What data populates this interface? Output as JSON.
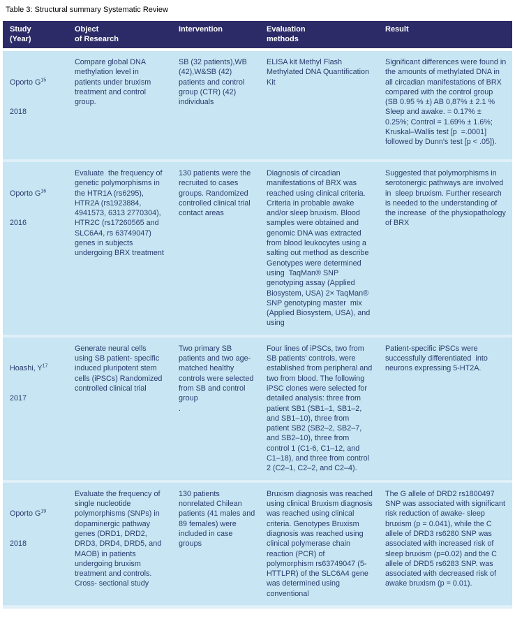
{
  "caption": "Table 3: Structural summary Systematic Review",
  "appearance": {
    "header_bg": "#2c2b67",
    "header_text": "#ffffff",
    "row_bg": "#c7e5f2",
    "row_separator": "#e0eff8",
    "body_text": "#2a3b6e"
  },
  "table": {
    "headers": {
      "study": "Study\n(Year)",
      "object": "Object\nof Research",
      "intervention": "Intervention",
      "evaluation": "Evaluation\nmethods",
      "result": "Result"
    },
    "rows": [
      {
        "study": {
          "name": "Oporto G",
          "ref": "15",
          "year": "2018"
        },
        "object": "Compare global DNA methylation level in patients under bruxism treatment and control group.",
        "intervention": "SB (32 patients),WB (42),W&SB (42) patients and control group (CTR) (42) individuals",
        "evaluation": "ELISA kit Methyl Flash Methylated DNA Quantification Kit",
        "result": "Significant differences were found in the amounts of methylated DNA in all circadian manifestations of BRX compared with the control group (SB 0.95 % ±) AB 0,87% ± 2.1 % Sleep and awake. = 0.17% ± 0.25%; Control = 1.69% ± 1.6%; Kruskal–Wallis test [p  =.0001] followed by Dunn's test [p < .05])."
      },
      {
        "study": {
          "name": "Oporto G",
          "ref": "16",
          "year": "2016"
        },
        "object": "Evaluate  the frequency of genetic polymorphisms in the HTR1A (rs6295), HTR2A (rs1923884, 4941573, 6313 2770304), HTR2C (rs17260565 and SLC6A4, rs 63749047) genes in subjects undergoing BRX treatment",
        "intervention": "130 patients were the recruited to cases groups. Randomized controlled clinical trial contact areas",
        "evaluation": "Diagnosis of circadian manifestations of BRX was reached using clinical criteria. Criteria in probable awake and/or sleep bruxism. Blood samples were obtained and genomic DNA was extracted from blood leukocytes using a salting out method as describe Genotypes were determined using  TaqMan® SNP genotyping assay (Applied Biosystem, USA) 2× TaqMan® SNP genotyping master  mix  (Applied Biosystem, USA), and using",
        "result": "Suggested that polymorphisms in serotonergic pathways are involved in  sleep bruxism. Further research is needed to the understanding of the increase  of the physiopathology of BRX"
      },
      {
        "study": {
          "name": "Hoashi, Y",
          "ref": "17",
          "year": "2017"
        },
        "object": "Generate neural cells using SB patient- specific induced pluripotent stem cells (iPSCs) Randomized controlled clinical trial",
        "intervention": "Two primary SB patients and two age- matched healthy controls were selected from SB and control group\n.",
        "evaluation": "Four lines of iPSCs, two from SB patients' controls, were established from peripheral and two from blood. The following iPSC clones were selected for detailed analysis: three from patient SB1 (SB1–1, SB1–2, and SB1–10), three from patient SB2 (SB2–2, SB2–7, and SB2–10), three from control 1 (C1-6, C1–12, and C1–18), and three from control 2 (C2–1, C2–2, and C2–4).",
        "result": "Patient-specific iPSCs were successfully differentiated  into neurons expressing 5-HT2A."
      },
      {
        "study": {
          "name": "Oporto G",
          "ref": "19",
          "year": "2018"
        },
        "object": "Evaluate the frequency of single nucleotide polymorphisms (SNPs) in dopaminergic pathway genes (DRD1, DRD2, DRD3, DRD4, DRD5, and MAOB) in patients undergoing bruxism treatment and controls. Cross- sectional study",
        "intervention": "130 patients nonrelated Chilean patients (41 males and 89 females) were included in case groups",
        "evaluation": "Bruxism diagnosis was reached using clinical Bruxism diagnosis was reached using clinical criteria. Genotypes Bruxism diagnosis was reached using clinical polymerase chain reaction (PCR) of polymorphism rs63749047 (5-HTTLPR) of the SLC6A4 gene was determined using conventional",
        "result": "The G allele of DRD2 rs1800497 SNP was associated with significant risk reduction of awake- sleep bruxism (p = 0.041), while the C allele of DRD3 rs6280 SNP was associated with increased risk of sleep bruxism (p=0.02) and the C allele of DRD5 rs6283 SNP. was associated with decreased risk of awake bruxism (p = 0.01)."
      }
    ]
  }
}
